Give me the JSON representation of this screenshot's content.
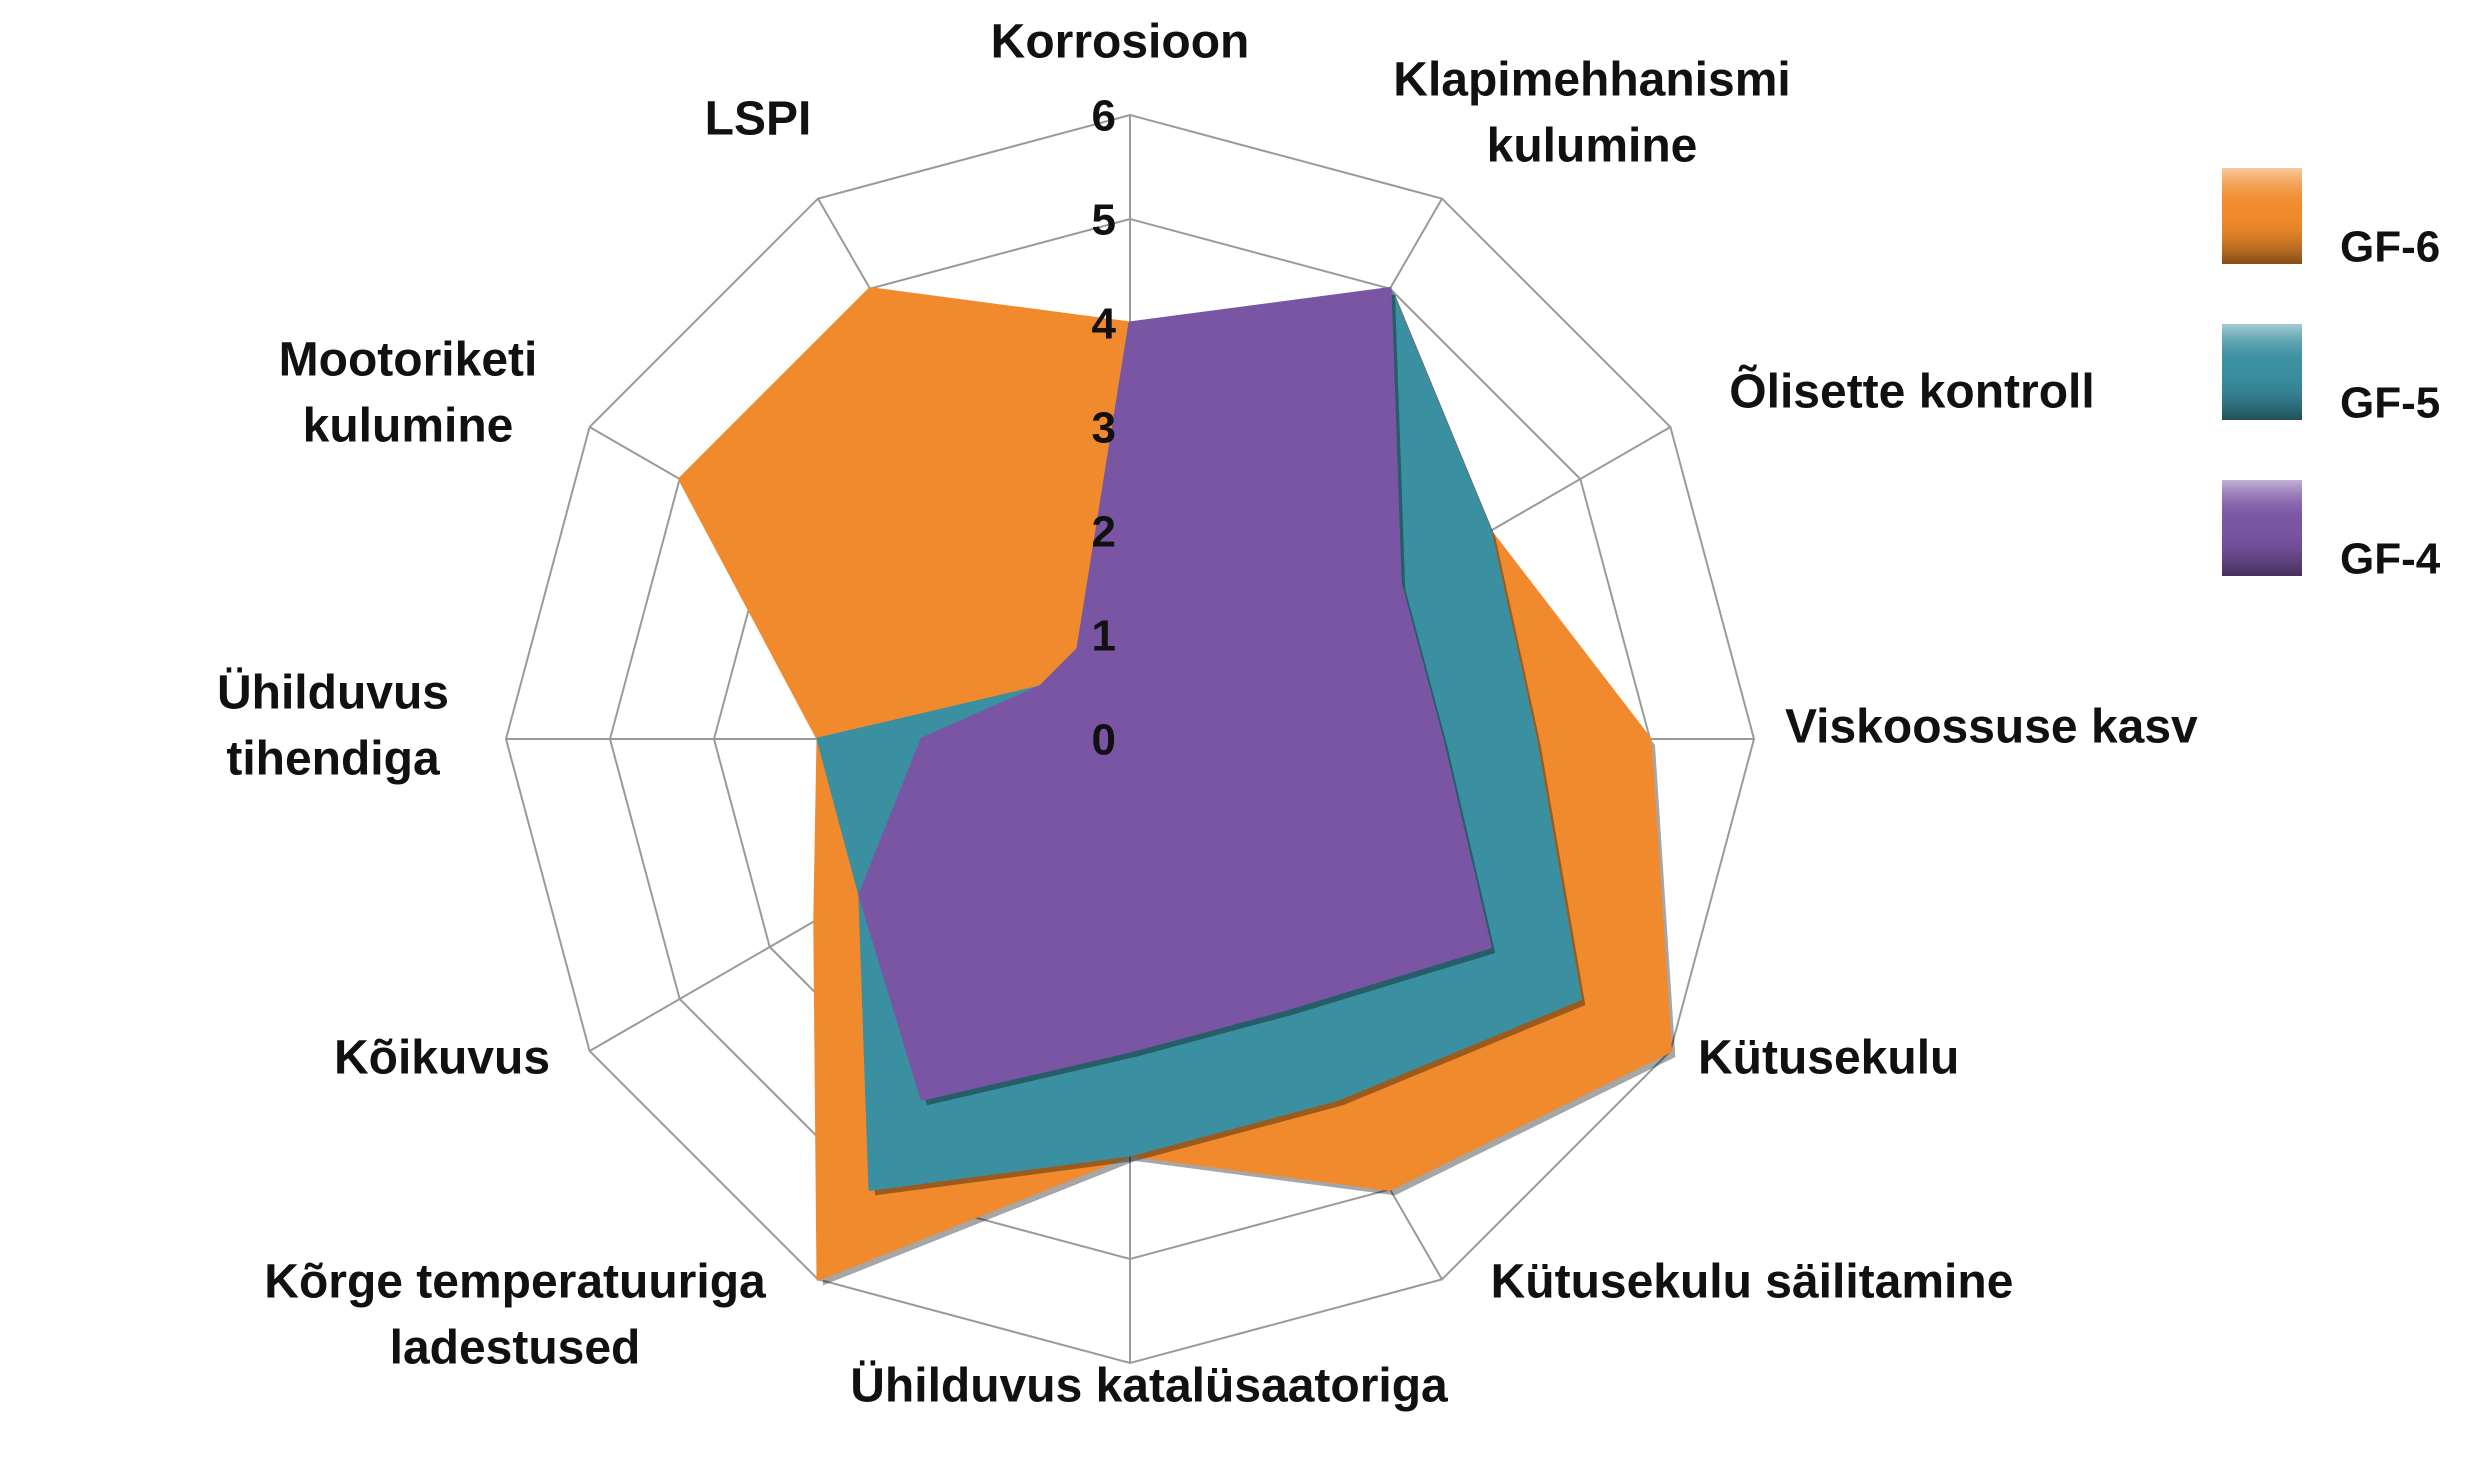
{
  "chart_data": {
    "type": "radar",
    "categories": [
      [
        "Korrosioon"
      ],
      [
        "Klapimehhanismi",
        "kulumine"
      ],
      [
        "Õlisette kontroll"
      ],
      [
        "Viskoossuse kasv"
      ],
      [
        "Kütusekulu"
      ],
      [
        "Kütusekulu säilitamine"
      ],
      [
        "Ühilduvus katalüsaatoriga"
      ],
      [
        "Kõrge temperatuuriga",
        "ladestused"
      ],
      [
        "Kõikuvus"
      ],
      [
        "Ühilduvus",
        "tihendiga"
      ],
      [
        "Mootoriketi",
        "kulumine"
      ],
      [
        "LSPI"
      ]
    ],
    "series": [
      {
        "name": "GF-6",
        "color": "#f08a2c",
        "values": [
          4,
          5,
          4,
          5,
          6,
          5,
          4,
          6,
          3.5,
          3,
          5,
          5
        ]
      },
      {
        "name": "GF-5",
        "color": "#3a8fa0",
        "values": [
          4,
          5,
          4,
          3.9,
          5,
          4,
          4,
          5,
          3,
          3,
          1,
          1
        ]
      },
      {
        "name": "GF-4",
        "color": "#7a55a3",
        "values": [
          4,
          5,
          3,
          3,
          4,
          3,
          3,
          4,
          3,
          2,
          1,
          1
        ]
      }
    ],
    "rlim": [
      0,
      6
    ],
    "rticks": [
      0,
      1,
      2,
      3,
      4,
      5,
      6
    ],
    "grid": true,
    "legend": "right"
  }
}
